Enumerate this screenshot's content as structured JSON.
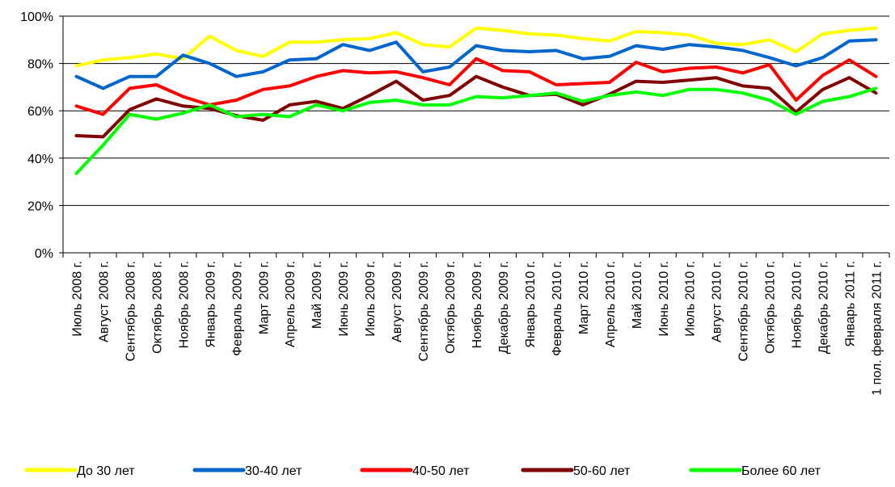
{
  "chart_data": {
    "type": "line",
    "title": "",
    "xlabel": "",
    "ylabel": "",
    "ylim": [
      0,
      100
    ],
    "yticks": [
      "0%",
      "20%",
      "40%",
      "60%",
      "80%",
      "100%"
    ],
    "grid": true,
    "legend_position": "bottom",
    "categories": [
      "Июль 2008 г.",
      "Август 2008 г.",
      "Сентябрь 2008 г.",
      "Октябрь 2008 г.",
      "Ноябрь 2008 г.",
      "Январь 2009 г.",
      "Февраль 2009 г.",
      "Март 2009 г.",
      "Апрель 2009 г.",
      "Май 2009 г.",
      "Июнь 2009 г.",
      "Июль 2009 г.",
      "Август 2009 г.",
      "Сентябрь 2009 г.",
      "Октябрь 2009 г.",
      "Ноябрь 2009 г.",
      "Декабрь 2009 г.",
      "Январь 2010 г.",
      "Февраль 2010 г.",
      "Март 2010 г.",
      "Апрель 2010 г.",
      "Май 2010 г.",
      "Июнь 2010 г.",
      "Июль 2010 г.",
      "Август 2010 г.",
      "Сентябрь 2010 г.",
      "Октябрь 2010 г.",
      "Ноябрь 2010 г.",
      "Декабрь 2010 г.",
      "Январь 2011 г.",
      "1 пол. февраля 2011 г."
    ],
    "series": [
      {
        "name": "До 30 лет",
        "color": "#ffff00",
        "values": [
          79,
          81.5,
          82.5,
          84,
          82,
          91.5,
          85.5,
          83,
          89,
          89,
          90,
          90.5,
          93,
          88,
          87,
          95,
          94,
          92.5,
          92,
          90.5,
          89.5,
          93.5,
          93,
          92,
          88.5,
          88,
          90,
          85,
          92.5,
          94,
          95
        ]
      },
      {
        "name": "30-40 лет",
        "color": "#0066cc",
        "values": [
          74.5,
          69.5,
          74.5,
          74.5,
          83.5,
          80,
          74.5,
          76.5,
          81.5,
          82,
          88,
          85.5,
          89,
          76.5,
          78.5,
          87.5,
          85.5,
          85,
          85.5,
          82,
          83,
          87.5,
          86,
          88,
          87,
          85.5,
          82.5,
          79,
          82.5,
          89.5,
          90
        ]
      },
      {
        "name": "40-50 лет",
        "color": "#ff0000",
        "values": [
          62,
          58.5,
          69.5,
          71,
          66,
          62.5,
          64.5,
          69,
          70.5,
          74.5,
          77,
          76,
          76.5,
          74,
          71,
          82,
          77,
          76.5,
          71,
          71.5,
          72,
          80.5,
          76.5,
          78,
          78.5,
          76,
          79.5,
          64.5,
          75,
          81.5,
          74.5
        ]
      },
      {
        "name": "50-60 лет",
        "color": "#800000",
        "values": [
          49.5,
          49,
          60.5,
          65,
          62,
          61,
          58,
          56,
          62.5,
          64,
          61,
          66.5,
          72.5,
          64.5,
          66.5,
          74.5,
          70,
          66.5,
          67,
          62.5,
          67,
          72.5,
          72,
          73,
          74,
          70.5,
          69.5,
          59.5,
          69,
          74,
          67.5
        ]
      },
      {
        "name": "Более 60 лет",
        "color": "#00ff00",
        "values": [
          33.5,
          45.5,
          58.5,
          56.5,
          59,
          62.5,
          57.5,
          58.5,
          57.5,
          62.5,
          60,
          63.5,
          64.5,
          62.5,
          62.5,
          66,
          65.5,
          66.5,
          67.5,
          64,
          66.5,
          68,
          66.5,
          69,
          69,
          67.5,
          64.5,
          58.5,
          64,
          66,
          69.5
        ]
      }
    ]
  }
}
